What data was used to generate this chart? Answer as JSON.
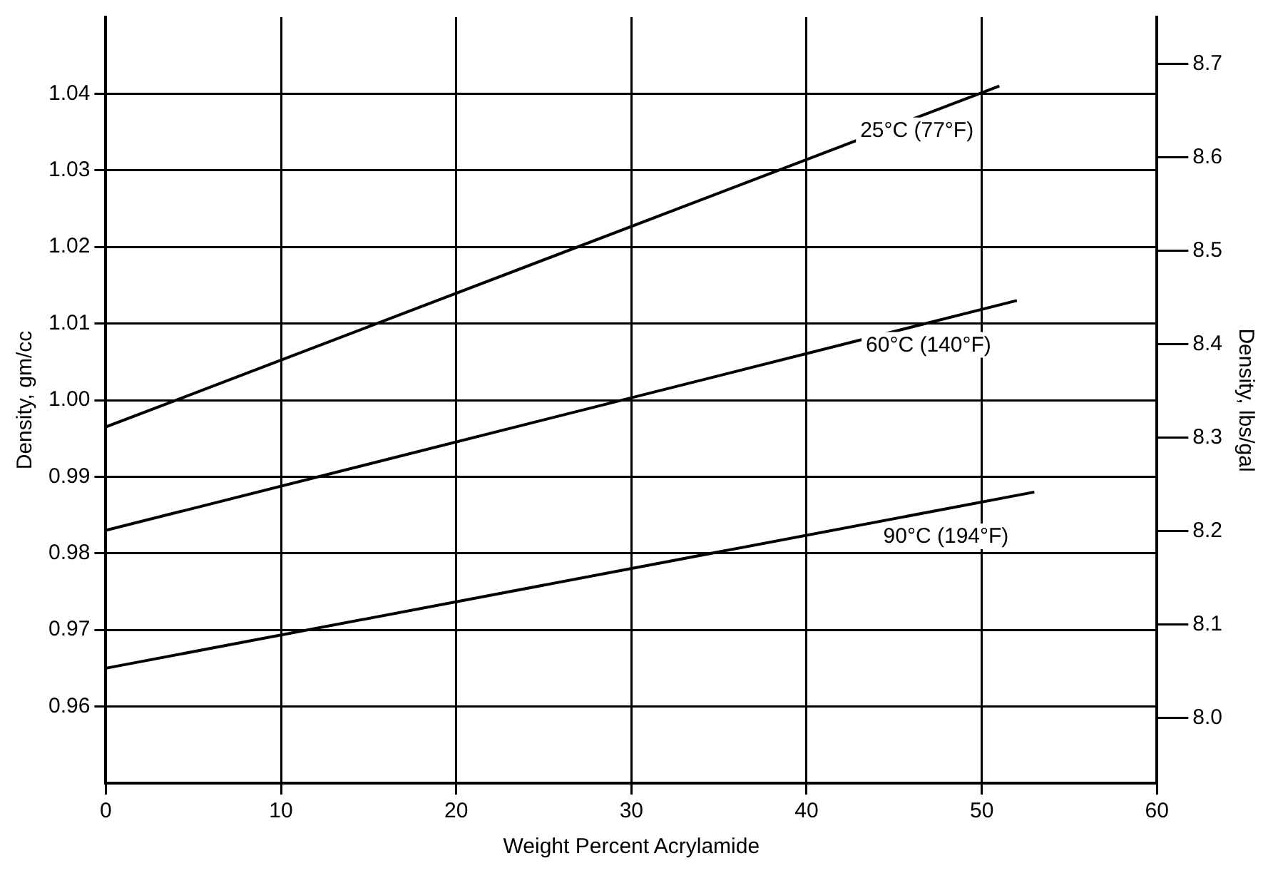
{
  "chart_data": {
    "type": "line",
    "xlabel": "Weight Percent Acrylamide",
    "ylabel": "Density, gm/cc",
    "y2label": "Density, lbs/gal",
    "xlim": [
      0,
      60
    ],
    "xticks": [
      0,
      10,
      20,
      30,
      40,
      50,
      60
    ],
    "ylim": [
      0.95,
      1.05
    ],
    "yticks": [
      0.96,
      0.97,
      0.98,
      0.99,
      {
        "value": 1,
        "label": "1.00"
      },
      1.01,
      1.02,
      1.03,
      1.04
    ],
    "y2lim": [
      7.93,
      8.75
    ],
    "y2ticks": [
      {
        "value": 8,
        "label": "8.0"
      },
      8.1,
      8.2,
      8.3,
      8.4,
      8.5,
      8.6,
      8.7
    ],
    "grid": true,
    "legend": false,
    "marker": "none",
    "line_style": "solid",
    "series": [
      {
        "name": "25°C (77°F)",
        "color": "#000000",
        "x": [
          0,
          51
        ],
        "values": [
          0.9965,
          1.041
        ]
      },
      {
        "name": "60°C (140°F)",
        "color": "#000000",
        "x": [
          0,
          52
        ],
        "values": [
          0.983,
          1.013
        ]
      },
      {
        "name": "90°C (194°F)",
        "color": "#000000",
        "x": [
          0,
          53
        ],
        "values": [
          0.965,
          0.988
        ]
      }
    ]
  }
}
